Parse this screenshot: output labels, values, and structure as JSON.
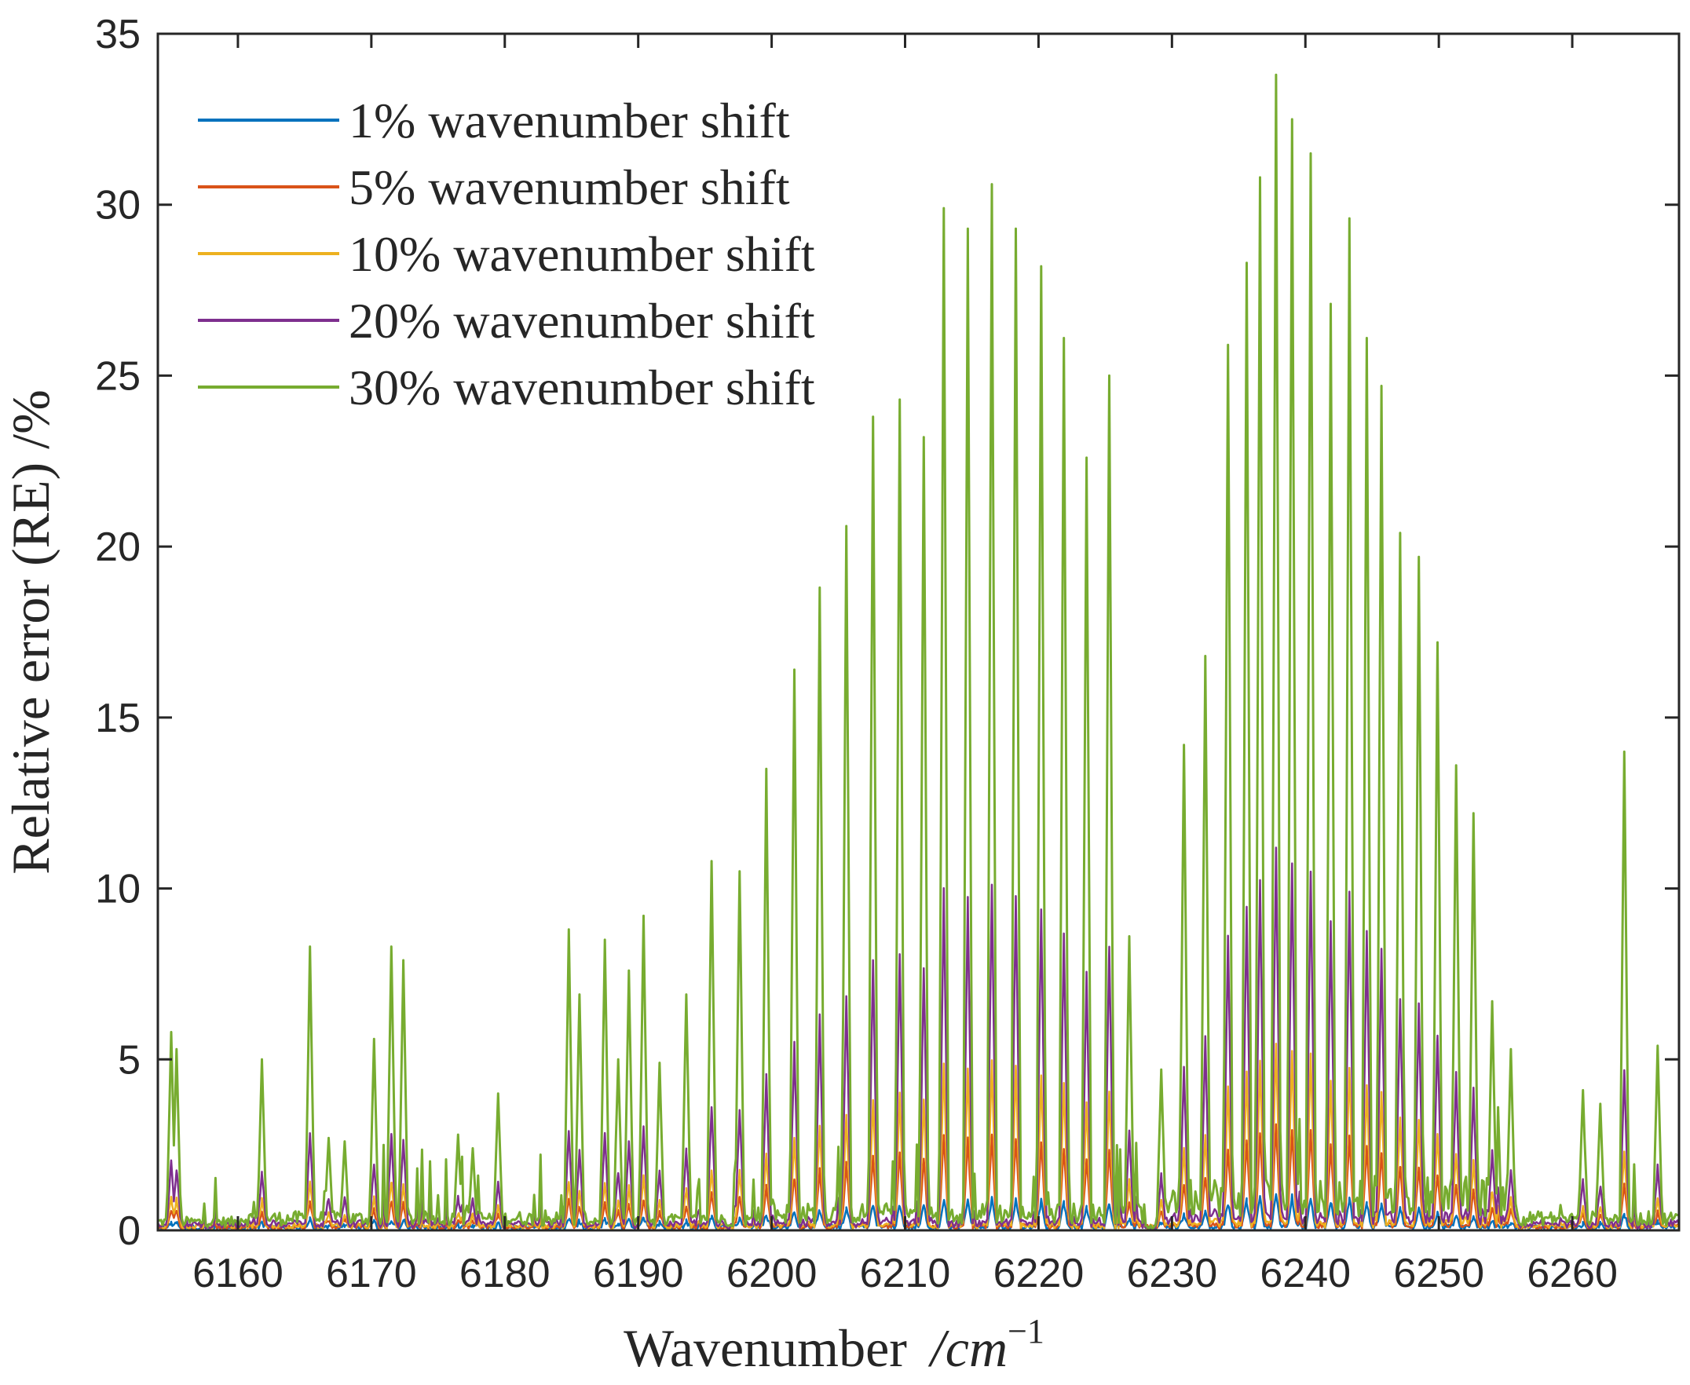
{
  "chart_data": {
    "type": "line",
    "title": "",
    "xlabel": "Wavenumber",
    "xlabel_unit": "/cm",
    "xlabel_unit_exponent": "−1",
    "ylabel": "Relative error (RE) /%",
    "xlim": [
      6154,
      6268
    ],
    "ylim": [
      0,
      35
    ],
    "xticks": [
      6160,
      6170,
      6180,
      6190,
      6200,
      6210,
      6220,
      6230,
      6240,
      6250,
      6260
    ],
    "yticks": [
      0,
      5,
      10,
      15,
      20,
      25,
      30,
      35
    ],
    "grid": false,
    "legend_position": "top-left",
    "series": [
      {
        "name": "1% wavenumber shift",
        "color": "#0072BD",
        "scale": 0.028
      },
      {
        "name": "5% wavenumber shift",
        "color": "#D95319",
        "scale": 0.09
      },
      {
        "name": "10% wavenumber shift",
        "color": "#EDB120",
        "scale": 0.16
      },
      {
        "name": "20% wavenumber shift",
        "color": "#7E2F8E",
        "scale": 0.33
      },
      {
        "name": "30% wavenumber shift",
        "color": "#77AC30",
        "scale": 1.0
      }
    ],
    "peaks_30pct": [
      {
        "x": 6155.0,
        "y": 5.8
      },
      {
        "x": 6155.4,
        "y": 5.3
      },
      {
        "x": 6161.8,
        "y": 5.0
      },
      {
        "x": 6165.4,
        "y": 8.3
      },
      {
        "x": 6166.8,
        "y": 2.7
      },
      {
        "x": 6168.0,
        "y": 2.6
      },
      {
        "x": 6170.2,
        "y": 5.6
      },
      {
        "x": 6171.5,
        "y": 8.3
      },
      {
        "x": 6172.4,
        "y": 7.9
      },
      {
        "x": 6176.5,
        "y": 2.8
      },
      {
        "x": 6177.6,
        "y": 2.4
      },
      {
        "x": 6179.5,
        "y": 4.0
      },
      {
        "x": 6184.8,
        "y": 8.8
      },
      {
        "x": 6185.6,
        "y": 6.9
      },
      {
        "x": 6187.5,
        "y": 8.5
      },
      {
        "x": 6188.5,
        "y": 5.0
      },
      {
        "x": 6189.3,
        "y": 7.6
      },
      {
        "x": 6190.4,
        "y": 9.2
      },
      {
        "x": 6191.6,
        "y": 4.9
      },
      {
        "x": 6193.6,
        "y": 6.9
      },
      {
        "x": 6195.5,
        "y": 10.8
      },
      {
        "x": 6197.6,
        "y": 10.5
      },
      {
        "x": 6199.6,
        "y": 13.5
      },
      {
        "x": 6201.7,
        "y": 16.4
      },
      {
        "x": 6203.6,
        "y": 18.8
      },
      {
        "x": 6205.6,
        "y": 20.6
      },
      {
        "x": 6207.6,
        "y": 23.8
      },
      {
        "x": 6209.6,
        "y": 24.3
      },
      {
        "x": 6211.4,
        "y": 23.2
      },
      {
        "x": 6212.9,
        "y": 29.9
      },
      {
        "x": 6214.7,
        "y": 29.3
      },
      {
        "x": 6216.5,
        "y": 30.6
      },
      {
        "x": 6218.3,
        "y": 29.3
      },
      {
        "x": 6220.2,
        "y": 28.2
      },
      {
        "x": 6221.9,
        "y": 26.1
      },
      {
        "x": 6223.6,
        "y": 22.6
      },
      {
        "x": 6225.3,
        "y": 25.0
      },
      {
        "x": 6226.8,
        "y": 8.6
      },
      {
        "x": 6229.2,
        "y": 4.7
      },
      {
        "x": 6230.9,
        "y": 14.2
      },
      {
        "x": 6232.5,
        "y": 16.8
      },
      {
        "x": 6234.2,
        "y": 25.9
      },
      {
        "x": 6235.6,
        "y": 28.3
      },
      {
        "x": 6236.6,
        "y": 30.8
      },
      {
        "x": 6237.8,
        "y": 33.8
      },
      {
        "x": 6239.0,
        "y": 32.5
      },
      {
        "x": 6240.4,
        "y": 31.5
      },
      {
        "x": 6241.9,
        "y": 27.1
      },
      {
        "x": 6243.3,
        "y": 29.6
      },
      {
        "x": 6244.6,
        "y": 26.1
      },
      {
        "x": 6245.7,
        "y": 24.7
      },
      {
        "x": 6247.1,
        "y": 20.4
      },
      {
        "x": 6248.5,
        "y": 19.7
      },
      {
        "x": 6249.9,
        "y": 17.2
      },
      {
        "x": 6251.3,
        "y": 13.6
      },
      {
        "x": 6252.6,
        "y": 12.2
      },
      {
        "x": 6254.0,
        "y": 6.7
      },
      {
        "x": 6255.4,
        "y": 5.3
      },
      {
        "x": 6260.8,
        "y": 4.1
      },
      {
        "x": 6262.1,
        "y": 3.7
      },
      {
        "x": 6263.9,
        "y": 14.0
      },
      {
        "x": 6266.4,
        "y": 5.4
      }
    ]
  }
}
